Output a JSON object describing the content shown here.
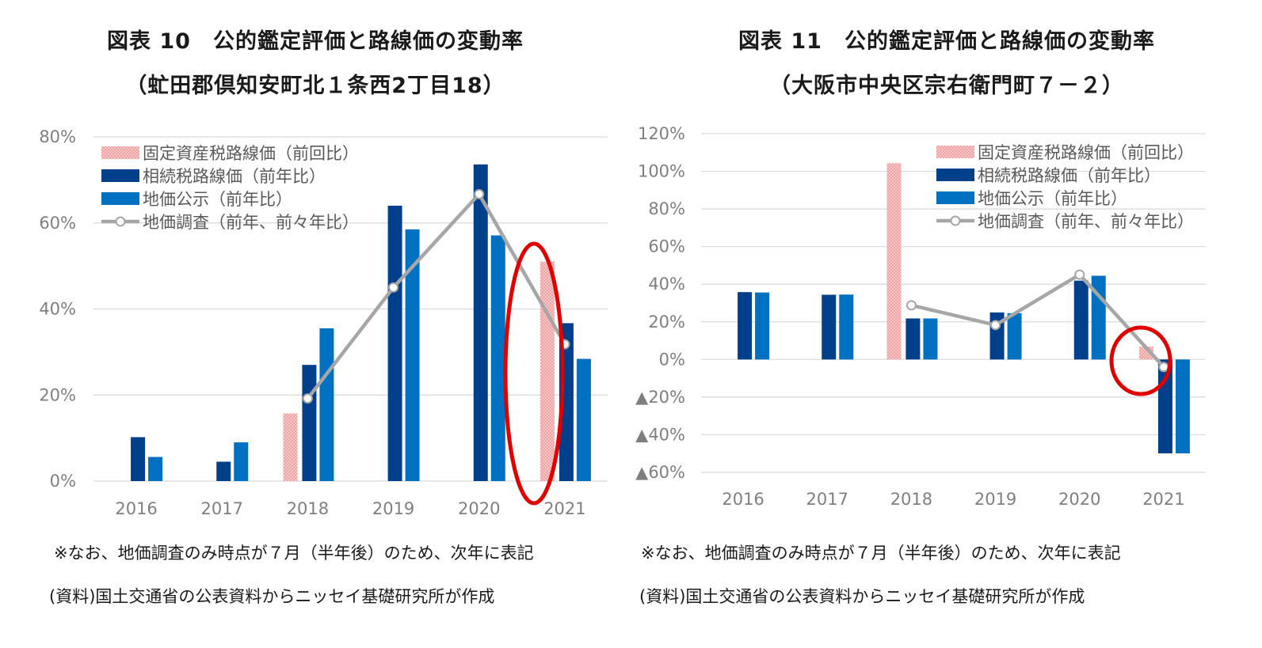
{
  "colors": {
    "fixed_asset": "#f4a8a8",
    "inheritance": "#003f8a",
    "public_price": "#0070c0",
    "survey": "#a6a6a6",
    "highlight": "#e00000"
  },
  "chart_data": [
    {
      "type": "bar",
      "title": "図表 10　公的鑑定評価と路線価の変動率",
      "subtitle": "（虻田郡倶知安町北１条西2丁目18）",
      "categories": [
        "2016",
        "2017",
        "2018",
        "2019",
        "2020",
        "2021"
      ],
      "ylim": [
        0,
        80
      ],
      "yticks": [
        0,
        20,
        40,
        60,
        80
      ],
      "ytick_labels": [
        "0%",
        "20%",
        "40%",
        "60%",
        "80%"
      ],
      "legend": [
        "固定資産税路線価（前回比）",
        "相続税路線価（前年比）",
        "地価公示（前年比）",
        "地価調査（前年、前々年比）"
      ],
      "legend_position": "top-left",
      "grid": true,
      "series": [
        {
          "name": "固定資産税路線価（前回比）",
          "kind": "bar",
          "values": [
            null,
            null,
            15.7,
            null,
            null,
            51.0
          ]
        },
        {
          "name": "相続税路線価（前年比）",
          "kind": "bar",
          "values": [
            10.2,
            4.5,
            27.0,
            64.0,
            73.6,
            36.7
          ]
        },
        {
          "name": "地価公示（前年比）",
          "kind": "bar",
          "values": [
            5.6,
            9.0,
            35.5,
            58.5,
            57.1,
            28.4
          ]
        },
        {
          "name": "地価調査（前年、前々年比）",
          "kind": "line",
          "values": [
            null,
            null,
            19.2,
            45.0,
            66.7,
            31.8
          ]
        }
      ],
      "annotation": "ellipse-highlight-2021",
      "notes": [
        "※なお、地価調査のみ時点が７月（半年後）のため、次年に表記",
        "(資料)国土交通省の公表資料からニッセイ基礎研究所が作成"
      ]
    },
    {
      "type": "bar",
      "title": "図表 11　公的鑑定評価と路線価の変動率",
      "subtitle": "（大阪市中央区宗右衛門町７－２）",
      "categories": [
        "2016",
        "2017",
        "2018",
        "2019",
        "2020",
        "2021"
      ],
      "ylim": [
        -60,
        120
      ],
      "yticks": [
        -60,
        -40,
        -20,
        0,
        20,
        40,
        60,
        80,
        100,
        120
      ],
      "ytick_labels": [
        "▲60%",
        "▲40%",
        "▲20%",
        "0%",
        "20%",
        "40%",
        "60%",
        "80%",
        "100%",
        "120%"
      ],
      "legend": [
        "固定資産税路線価（前回比）",
        "相続税路線価（前年比）",
        "地価公示（前年比）",
        "地価調査（前年、前々年比）"
      ],
      "legend_position": "top-right",
      "grid": true,
      "series": [
        {
          "name": "固定資産税路線価（前回比）",
          "kind": "bar",
          "values": [
            null,
            null,
            104.3,
            null,
            null,
            6.8
          ]
        },
        {
          "name": "相続税路線価（前年比）",
          "kind": "bar",
          "values": [
            35.8,
            34.4,
            21.8,
            25.0,
            41.9,
            -49.9
          ]
        },
        {
          "name": "地価公示（前年比）",
          "kind": "bar",
          "values": [
            35.6,
            34.5,
            21.8,
            24.6,
            44.5,
            -49.9
          ]
        },
        {
          "name": "地価調査（前年、前々年比）",
          "kind": "line",
          "values": [
            null,
            null,
            28.8,
            18.3,
            45.1,
            -4.0
          ]
        }
      ],
      "annotation": "circle-highlight-2021",
      "notes": [
        "※なお、地価調査のみ時点が７月（半年後）のため、次年に表記",
        "(資料)国土交通省の公表資料からニッセイ基礎研究所が作成"
      ]
    }
  ]
}
